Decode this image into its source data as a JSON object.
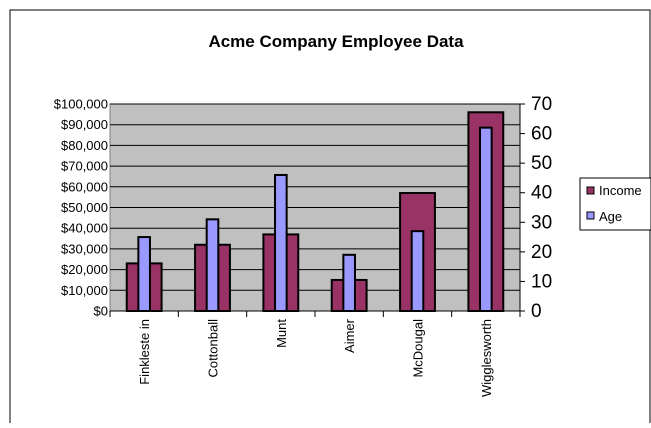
{
  "chart_data": {
    "type": "bar",
    "title": "Acme Company Employee Data",
    "categories": [
      "Finkleste in",
      "Cottonball",
      "Munt",
      "Aimer",
      "McDougal",
      "Wigglesworth"
    ],
    "series": [
      {
        "name": "Income",
        "axis": "left",
        "values": [
          23000,
          32000,
          37000,
          15000,
          57000,
          96000
        ],
        "color": "#993366"
      },
      {
        "name": "Age",
        "axis": "right",
        "values": [
          25,
          31,
          46,
          19,
          27,
          62
        ],
        "color": "#9999ff"
      }
    ],
    "y_left": {
      "ylim": [
        0,
        100000
      ],
      "ticks": [
        "$0",
        "$10,000",
        "$20,000",
        "$30,000",
        "$40,000",
        "$50,000",
        "$60,000",
        "$70,000",
        "$80,000",
        "$90,000",
        "$100,000"
      ]
    },
    "y_right": {
      "ylim": [
        0,
        70
      ],
      "ticks": [
        "0",
        "10",
        "20",
        "30",
        "40",
        "50",
        "60",
        "70"
      ]
    },
    "xlabel": "",
    "ylabel": "",
    "grid": true,
    "legend": "right",
    "plot_background": "#c0c0c0"
  }
}
